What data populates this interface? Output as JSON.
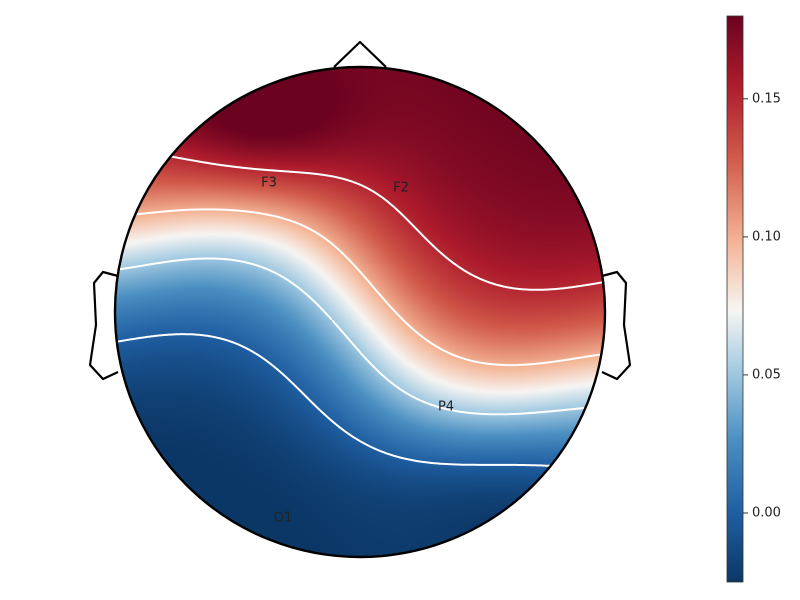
{
  "chart_data": {
    "type": "heatmap",
    "subtype": "eeg-topomap",
    "title": "",
    "colormap": "RdBu_r",
    "colors": {
      "low": "#0b3766",
      "mid": "#f7f5f3",
      "high": "#6b0220"
    },
    "vmin": -0.025,
    "vmax": 0.18,
    "contour_style": "dotted-white",
    "contour_levels": [
      0.0,
      0.05,
      0.1,
      0.15
    ],
    "electrodes": [
      {
        "label": "F3",
        "value": 0.17
      },
      {
        "label": "F2",
        "value": 0.13
      },
      {
        "label": "P4",
        "value": 0.0
      },
      {
        "label": "O1",
        "value": -0.02
      }
    ],
    "colorbar": {
      "ticks": [
        0.0,
        0.05,
        0.1,
        0.15
      ],
      "tick_labels": [
        "0.00",
        "0.05",
        "0.10",
        "0.15"
      ]
    }
  }
}
